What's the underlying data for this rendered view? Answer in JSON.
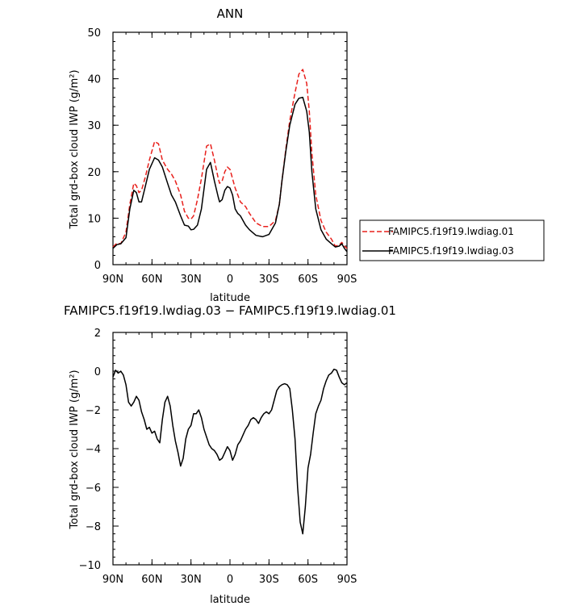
{
  "chart_data": [
    {
      "type": "line",
      "title": "ANN",
      "xlabel": "latitude",
      "ylabel": "Total grd-box cloud IWP (g/m²)",
      "xlim": [
        90,
        -90
      ],
      "ylim": [
        0,
        50
      ],
      "x_ticks": [
        90,
        60,
        30,
        0,
        -30,
        -60,
        -90
      ],
      "x_tick_labels": [
        "90N",
        "60N",
        "30N",
        "0",
        "30S",
        "60S",
        "90S"
      ],
      "y_ticks": [
        0,
        10,
        20,
        30,
        40,
        50
      ],
      "y_tick_labels": [
        "0",
        "10",
        "20",
        "30",
        "40",
        "50"
      ],
      "legend_position": "right",
      "series": [
        {
          "name": "FAMIPC5.f19f19.lwdiag.01",
          "color": "#e8201c",
          "dash": "dashed",
          "x": [
            90,
            87,
            84,
            80,
            77,
            74,
            72,
            70,
            68,
            65,
            62,
            58,
            55,
            52,
            48,
            45,
            42,
            38,
            35,
            32,
            30,
            28,
            25,
            22,
            18,
            15,
            12,
            9,
            8,
            6,
            4,
            2,
            0,
            -2,
            -4,
            -6,
            -8,
            -12,
            -15,
            -20,
            -25,
            -30,
            -35,
            -38,
            -40,
            -43,
            -46,
            -50,
            -53,
            -56,
            -59,
            -61,
            -63,
            -66,
            -70,
            -74,
            -78,
            -81,
            -84,
            -86,
            -88,
            -90
          ],
          "values": [
            3.8,
            4.6,
            4.5,
            7.0,
            13.0,
            17.5,
            17.0,
            15.5,
            16.0,
            19.0,
            22.5,
            26.5,
            26.0,
            22.5,
            20.5,
            19.5,
            18.0,
            15.0,
            11.5,
            10.0,
            9.8,
            10.5,
            14.0,
            18.5,
            25.5,
            26.0,
            22.5,
            18.5,
            17.5,
            18.0,
            20.0,
            21.0,
            20.5,
            18.5,
            16.5,
            15.0,
            13.5,
            12.5,
            11.0,
            9.0,
            8.2,
            8.2,
            9.5,
            13.0,
            18.0,
            25.0,
            31.0,
            37.0,
            41.0,
            42.0,
            39.0,
            33.0,
            24.0,
            15.0,
            9.5,
            7.0,
            5.5,
            4.0,
            4.2,
            4.8,
            4.0,
            3.5
          ]
        },
        {
          "name": "FAMIPC5.f19f19.lwdiag.03",
          "color": "#000000",
          "dash": "solid",
          "x": [
            90,
            87,
            84,
            80,
            77,
            74,
            72,
            70,
            68,
            65,
            62,
            58,
            55,
            52,
            48,
            45,
            42,
            38,
            35,
            32,
            30,
            28,
            25,
            22,
            18,
            15,
            12,
            9,
            8,
            6,
            4,
            2,
            0,
            -2,
            -4,
            -6,
            -8,
            -12,
            -15,
            -20,
            -25,
            -30,
            -35,
            -38,
            -40,
            -43,
            -46,
            -50,
            -53,
            -56,
            -59,
            -61,
            -63,
            -66,
            -70,
            -74,
            -78,
            -81,
            -84,
            -86,
            -88,
            -90
          ],
          "values": [
            3.5,
            4.3,
            4.5,
            5.8,
            12.0,
            16.0,
            15.5,
            13.5,
            13.5,
            17.0,
            20.5,
            23.0,
            22.5,
            21.0,
            17.5,
            15.0,
            13.5,
            10.5,
            8.5,
            8.3,
            7.5,
            7.6,
            8.5,
            12.0,
            20.5,
            22.0,
            18.0,
            14.5,
            13.5,
            14.0,
            16.0,
            16.8,
            16.5,
            15.0,
            12.0,
            11.0,
            10.5,
            8.5,
            7.5,
            6.3,
            6.0,
            6.5,
            9.0,
            13.0,
            18.0,
            24.5,
            30.0,
            34.5,
            35.8,
            36.0,
            33.0,
            28.5,
            20.0,
            12.0,
            7.5,
            5.5,
            4.5,
            3.8,
            4.0,
            4.5,
            3.5,
            2.8
          ]
        }
      ]
    },
    {
      "type": "line",
      "title": "FAMIPC5.f19f19.lwdiag.03 − FAMIPC5.f19f19.lwdiag.01",
      "xlabel": "latitude",
      "ylabel": "Total grd-box cloud IWP (g/m²)",
      "xlim": [
        90,
        -90
      ],
      "ylim": [
        -10,
        2
      ],
      "x_ticks": [
        90,
        60,
        30,
        0,
        -30,
        -60,
        -90
      ],
      "x_tick_labels": [
        "90N",
        "60N",
        "30N",
        "0",
        "30S",
        "60S",
        "90S"
      ],
      "y_ticks": [
        2,
        0,
        -2,
        -4,
        -6,
        -8,
        -10
      ],
      "y_tick_labels": [
        "2",
        "0",
        "−2",
        "−4",
        "−6",
        "−8",
        "−10"
      ],
      "series": [
        {
          "color": "#000000",
          "dash": "solid",
          "x": [
            90,
            88,
            86,
            84,
            82,
            80,
            78,
            76,
            74,
            72,
            70,
            68,
            66,
            64,
            62,
            60,
            58,
            56,
            54,
            52,
            50,
            48,
            46,
            44,
            42,
            40,
            38,
            36,
            34,
            32,
            30,
            28,
            26,
            24,
            22,
            20,
            18,
            16,
            14,
            12,
            10,
            8,
            6,
            4,
            2,
            0,
            -2,
            -4,
            -6,
            -8,
            -10,
            -12,
            -14,
            -16,
            -18,
            -20,
            -22,
            -24,
            -26,
            -28,
            -30,
            -32,
            -34,
            -36,
            -38,
            -40,
            -42,
            -44,
            -46,
            -48,
            -50,
            -52,
            -54,
            -56,
            -58,
            -60,
            -62,
            -64,
            -66,
            -68,
            -70,
            -72,
            -74,
            -76,
            -78,
            -80,
            -82,
            -84,
            -86,
            -88,
            -90
          ],
          "values": [
            -0.3,
            0.05,
            -0.1,
            0.0,
            -0.2,
            -0.7,
            -1.6,
            -1.8,
            -1.6,
            -1.3,
            -1.5,
            -2.1,
            -2.5,
            -3.0,
            -2.9,
            -3.2,
            -3.1,
            -3.5,
            -3.7,
            -2.5,
            -1.6,
            -1.3,
            -1.8,
            -2.8,
            -3.6,
            -4.2,
            -4.9,
            -4.5,
            -3.5,
            -3.0,
            -2.8,
            -2.2,
            -2.2,
            -2.0,
            -2.4,
            -3.0,
            -3.4,
            -3.8,
            -4.0,
            -4.1,
            -4.3,
            -4.6,
            -4.5,
            -4.2,
            -3.9,
            -4.1,
            -4.6,
            -4.3,
            -3.8,
            -3.6,
            -3.3,
            -3.0,
            -2.8,
            -2.5,
            -2.4,
            -2.5,
            -2.7,
            -2.4,
            -2.2,
            -2.1,
            -2.2,
            -2.0,
            -1.5,
            -1.0,
            -0.8,
            -0.7,
            -0.65,
            -0.7,
            -0.9,
            -2.0,
            -3.5,
            -6.0,
            -7.8,
            -8.4,
            -7.0,
            -5.0,
            -4.3,
            -3.2,
            -2.2,
            -1.8,
            -1.5,
            -0.9,
            -0.5,
            -0.2,
            -0.1,
            0.1,
            0.05,
            -0.3,
            -0.6,
            -0.7,
            -0.6
          ]
        }
      ]
    }
  ]
}
